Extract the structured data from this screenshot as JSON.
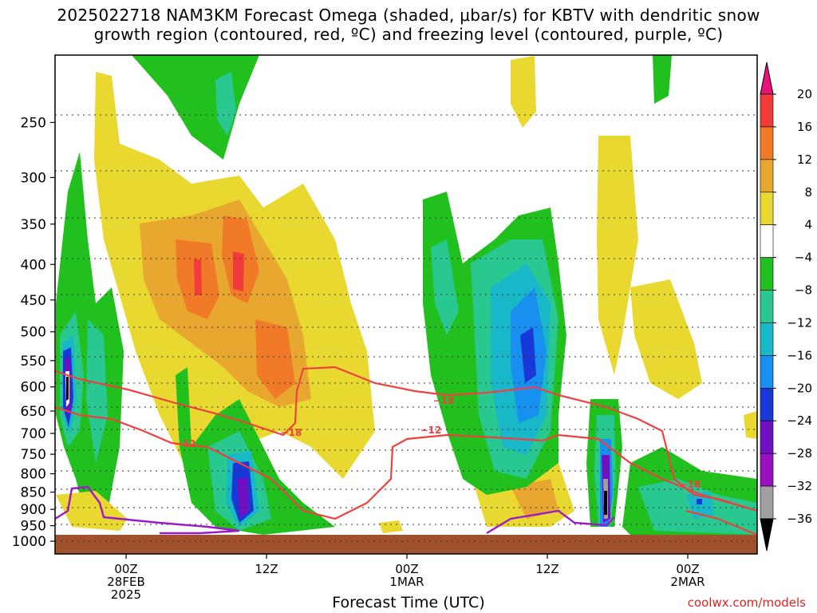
{
  "title_line1": "2025022718 NAM3KM Forecast Omega (shaded, μbar/s) for KBTV with dendritic snow",
  "title_line2": "growth region (contoured, red, ºC) and freezing level (contoured, purple, ºC)",
  "xaxis_title": "Forecast Time (UTC)",
  "credit": "coolwx.com/models",
  "chart_data": {
    "type": "heatmap",
    "title": "2025022718 NAM3KM Forecast Omega (shaded, μbar/s) for KBTV with dendritic snow growth region (contoured, red, ºC) and freezing level (contoured, purple, ºC)",
    "xlabel": "Forecast Time (UTC)",
    "ylabel": "",
    "y_ticks": [
      "250",
      "300",
      "350",
      "400",
      "450",
      "500",
      "550",
      "600",
      "650",
      "700",
      "750",
      "800",
      "850",
      "900",
      "950",
      "1000"
    ],
    "x_ticks": [
      {
        "lines": [
          "00Z",
          "28FEB",
          "2025"
        ]
      },
      {
        "lines": [
          "12Z"
        ]
      },
      {
        "lines": [
          "00Z",
          "1MAR"
        ]
      },
      {
        "lines": [
          "12Z"
        ]
      },
      {
        "lines": [
          "00Z",
          "2MAR"
        ]
      }
    ],
    "colorbar": {
      "labels": [
        "20",
        "16",
        "12",
        "8",
        "4",
        "−4",
        "−8",
        "−12",
        "−16",
        "−20",
        "−24",
        "−28",
        "−32",
        "−36"
      ],
      "colors": [
        "#e8127a",
        "#f23c3c",
        "#f07a28",
        "#e8a830",
        "#e8d830",
        "#ffffff",
        "#22c01e",
        "#28c890",
        "#18b8c8",
        "#1890f0",
        "#1838d8",
        "#7010c0",
        "#9810c0",
        "#a0a0a0",
        "#000000"
      ]
    },
    "contour_labels": [
      {
        "text": "−12",
        "color": "#ef4040"
      },
      {
        "text": "−18",
        "color": "#ef4040"
      },
      {
        "text": "−18",
        "color": "#ef4040"
      },
      {
        "text": "−12",
        "color": "#ef4040"
      },
      {
        "text": "−18",
        "color": "#ef4040"
      }
    ],
    "colors": {
      "dgz": "#ef4040",
      "freezing": "#9a1ac8",
      "ground": "#a0522d"
    }
  }
}
